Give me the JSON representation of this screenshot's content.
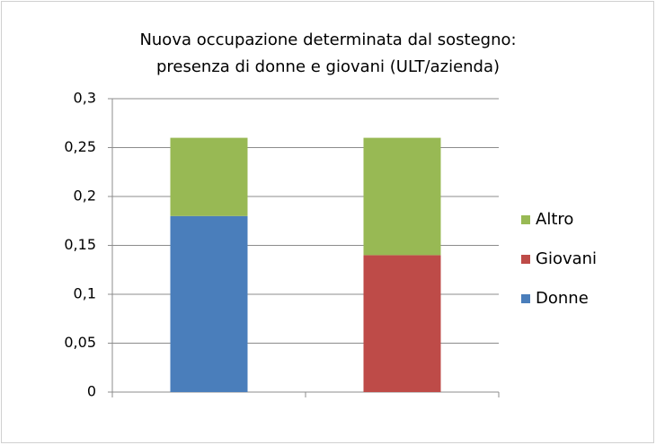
{
  "chart_data": {
    "type": "stacked_bar",
    "title": [
      "Nuova occupazione determinata dal sostegno:",
      "presenza di donne e giovani (ULT/azienda)"
    ],
    "categories": [
      null,
      null
    ],
    "series": [
      {
        "name": "Donne",
        "color": "#4a7ebb",
        "values": [
          0.18,
          null
        ]
      },
      {
        "name": "Giovani",
        "color": "#be4b48",
        "values": [
          null,
          0.14
        ]
      },
      {
        "name": "Altro",
        "color": "#98b954",
        "values": [
          0.08,
          0.12
        ]
      }
    ],
    "ylim": [
      0,
      0.3
    ],
    "yticks": [
      0,
      {
        "value": 0.05,
        "label": "0,05"
      },
      {
        "value": 0.1,
        "label": "0,1"
      },
      {
        "value": 0.15,
        "label": "0,15"
      },
      {
        "value": 0.2,
        "label": "0,2"
      },
      {
        "value": 0.25,
        "label": "0,25"
      },
      {
        "value": 0.3,
        "label": "0,3"
      }
    ],
    "grid": true,
    "legend": "right"
  }
}
